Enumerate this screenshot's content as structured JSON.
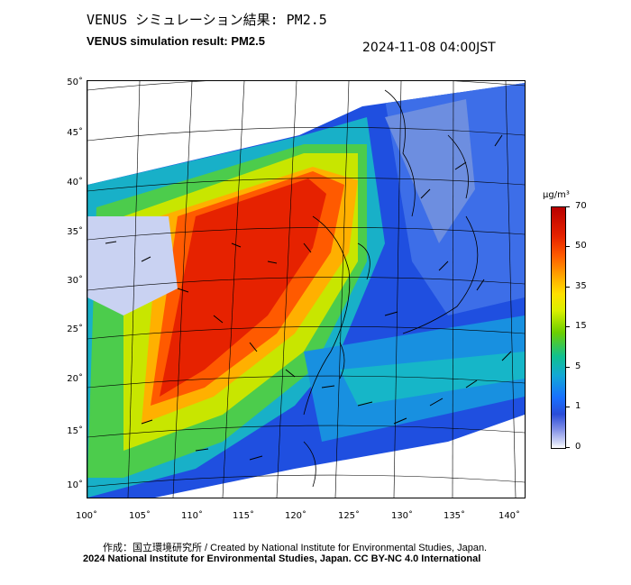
{
  "header": {
    "title_jp": "VENUS シミュレーション結果: PM2.5",
    "title_en": "VENUS simulation result: PM2.5",
    "timestamp": "2024-11-08 04:00JST"
  },
  "map": {
    "lat_labels": [
      "50˚",
      "45˚",
      "40˚",
      "35˚",
      "30˚",
      "25˚",
      "20˚",
      "15˚",
      "10˚"
    ],
    "lon_labels": [
      "100˚",
      "105˚",
      "110˚",
      "115˚",
      "120˚",
      "125˚",
      "130˚",
      "135˚",
      "140˚"
    ],
    "colors": {
      "high": "#e62200",
      "mid": "#ffe000",
      "low": "#10c090",
      "clean": "#1870ff",
      "ocean_wind_bg": "#2a4cd8"
    }
  },
  "colorbar": {
    "unit": "μg/m³",
    "ticks": [
      "70",
      "50",
      "35",
      "15",
      "5",
      "1",
      "0"
    ]
  },
  "footer": {
    "credit_line": "作成：国立環境研究所 / Created by National Institute for Environmental Studies, Japan.",
    "license_line": "2024 National Institute for Environmental Studies, Japan. CC BY-NC 4.0 International"
  }
}
